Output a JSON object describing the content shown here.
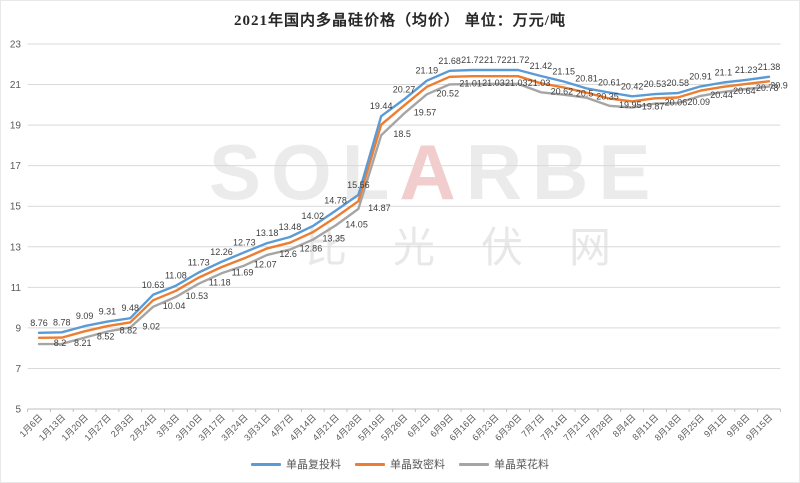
{
  "title": "2021年国内多晶硅价格（均价） 单位：万元/吨",
  "watermark": {
    "latin_left": "SOL",
    "latin_accent": "A",
    "latin_right": "RBE",
    "cjk": "比光伏网"
  },
  "chart_data": {
    "type": "line",
    "title": "2021年国内多晶硅价格（均价） 单位：万元/吨",
    "unit": "万元/吨",
    "xlabel": "",
    "ylabel": "",
    "ylim": [
      5,
      23
    ],
    "yticks": [
      23,
      21,
      19,
      17,
      15,
      13,
      11,
      9,
      7,
      5
    ],
    "grid": true,
    "legend_position": "bottom",
    "categories": [
      "1月6日",
      "1月13日",
      "1月20日",
      "1月27日",
      "2月3日",
      "2月24日",
      "3月3日",
      "3月10日",
      "3月17日",
      "3月24日",
      "3月31日",
      "4月7日",
      "4月14日",
      "4月21日",
      "4月28日",
      "5月19日",
      "5月26日",
      "6月2日",
      "6月9日",
      "6月16日",
      "6月23日",
      "6月30日",
      "7月7日",
      "7月14日",
      "7月21日",
      "7月28日",
      "8月4日",
      "8月11日",
      "8月18日",
      "8月25日",
      "9月1日",
      "9月8日",
      "9月15日"
    ],
    "series": [
      {
        "name": "单晶复投料",
        "color": "#5B9BD5",
        "labels_shown": true,
        "label_position": "above",
        "values": [
          8.76,
          8.78,
          9.09,
          9.31,
          9.48,
          10.63,
          11.08,
          11.73,
          12.26,
          12.73,
          13.18,
          13.48,
          14.02,
          14.78,
          15.56,
          19.44,
          20.27,
          21.19,
          21.68,
          21.72,
          21.72,
          21.72,
          21.42,
          21.15,
          20.81,
          20.61,
          20.42,
          20.53,
          20.58,
          20.91,
          21.1,
          21.23,
          21.38
        ]
      },
      {
        "name": "单晶致密料",
        "color": "#ED7D31",
        "labels_shown": false,
        "values_estimated_from_pixels": true,
        "values": [
          8.51,
          8.52,
          8.83,
          9.09,
          9.27,
          10.36,
          10.83,
          11.48,
          12.0,
          12.43,
          12.92,
          13.2,
          13.72,
          14.45,
          15.25,
          19.02,
          19.96,
          20.89,
          21.38,
          21.41,
          21.41,
          21.41,
          21.06,
          20.86,
          20.6,
          20.31,
          20.17,
          20.32,
          20.36,
          20.7,
          20.89,
          21.03,
          21.16
        ]
      },
      {
        "name": "单晶菜花料",
        "color": "#A5A5A5",
        "labels_shown": true,
        "label_position": "right",
        "values": [
          8.2,
          8.21,
          8.52,
          8.82,
          9.02,
          10.04,
          10.53,
          11.18,
          11.69,
          12.07,
          12.6,
          12.86,
          13.35,
          14.05,
          14.87,
          18.5,
          19.57,
          20.52,
          21.01,
          21.03,
          21.03,
          21.03,
          20.62,
          20.5,
          20.35,
          19.95,
          19.87,
          20.06,
          20.09,
          20.44,
          20.64,
          20.78,
          20.9
        ]
      }
    ]
  }
}
